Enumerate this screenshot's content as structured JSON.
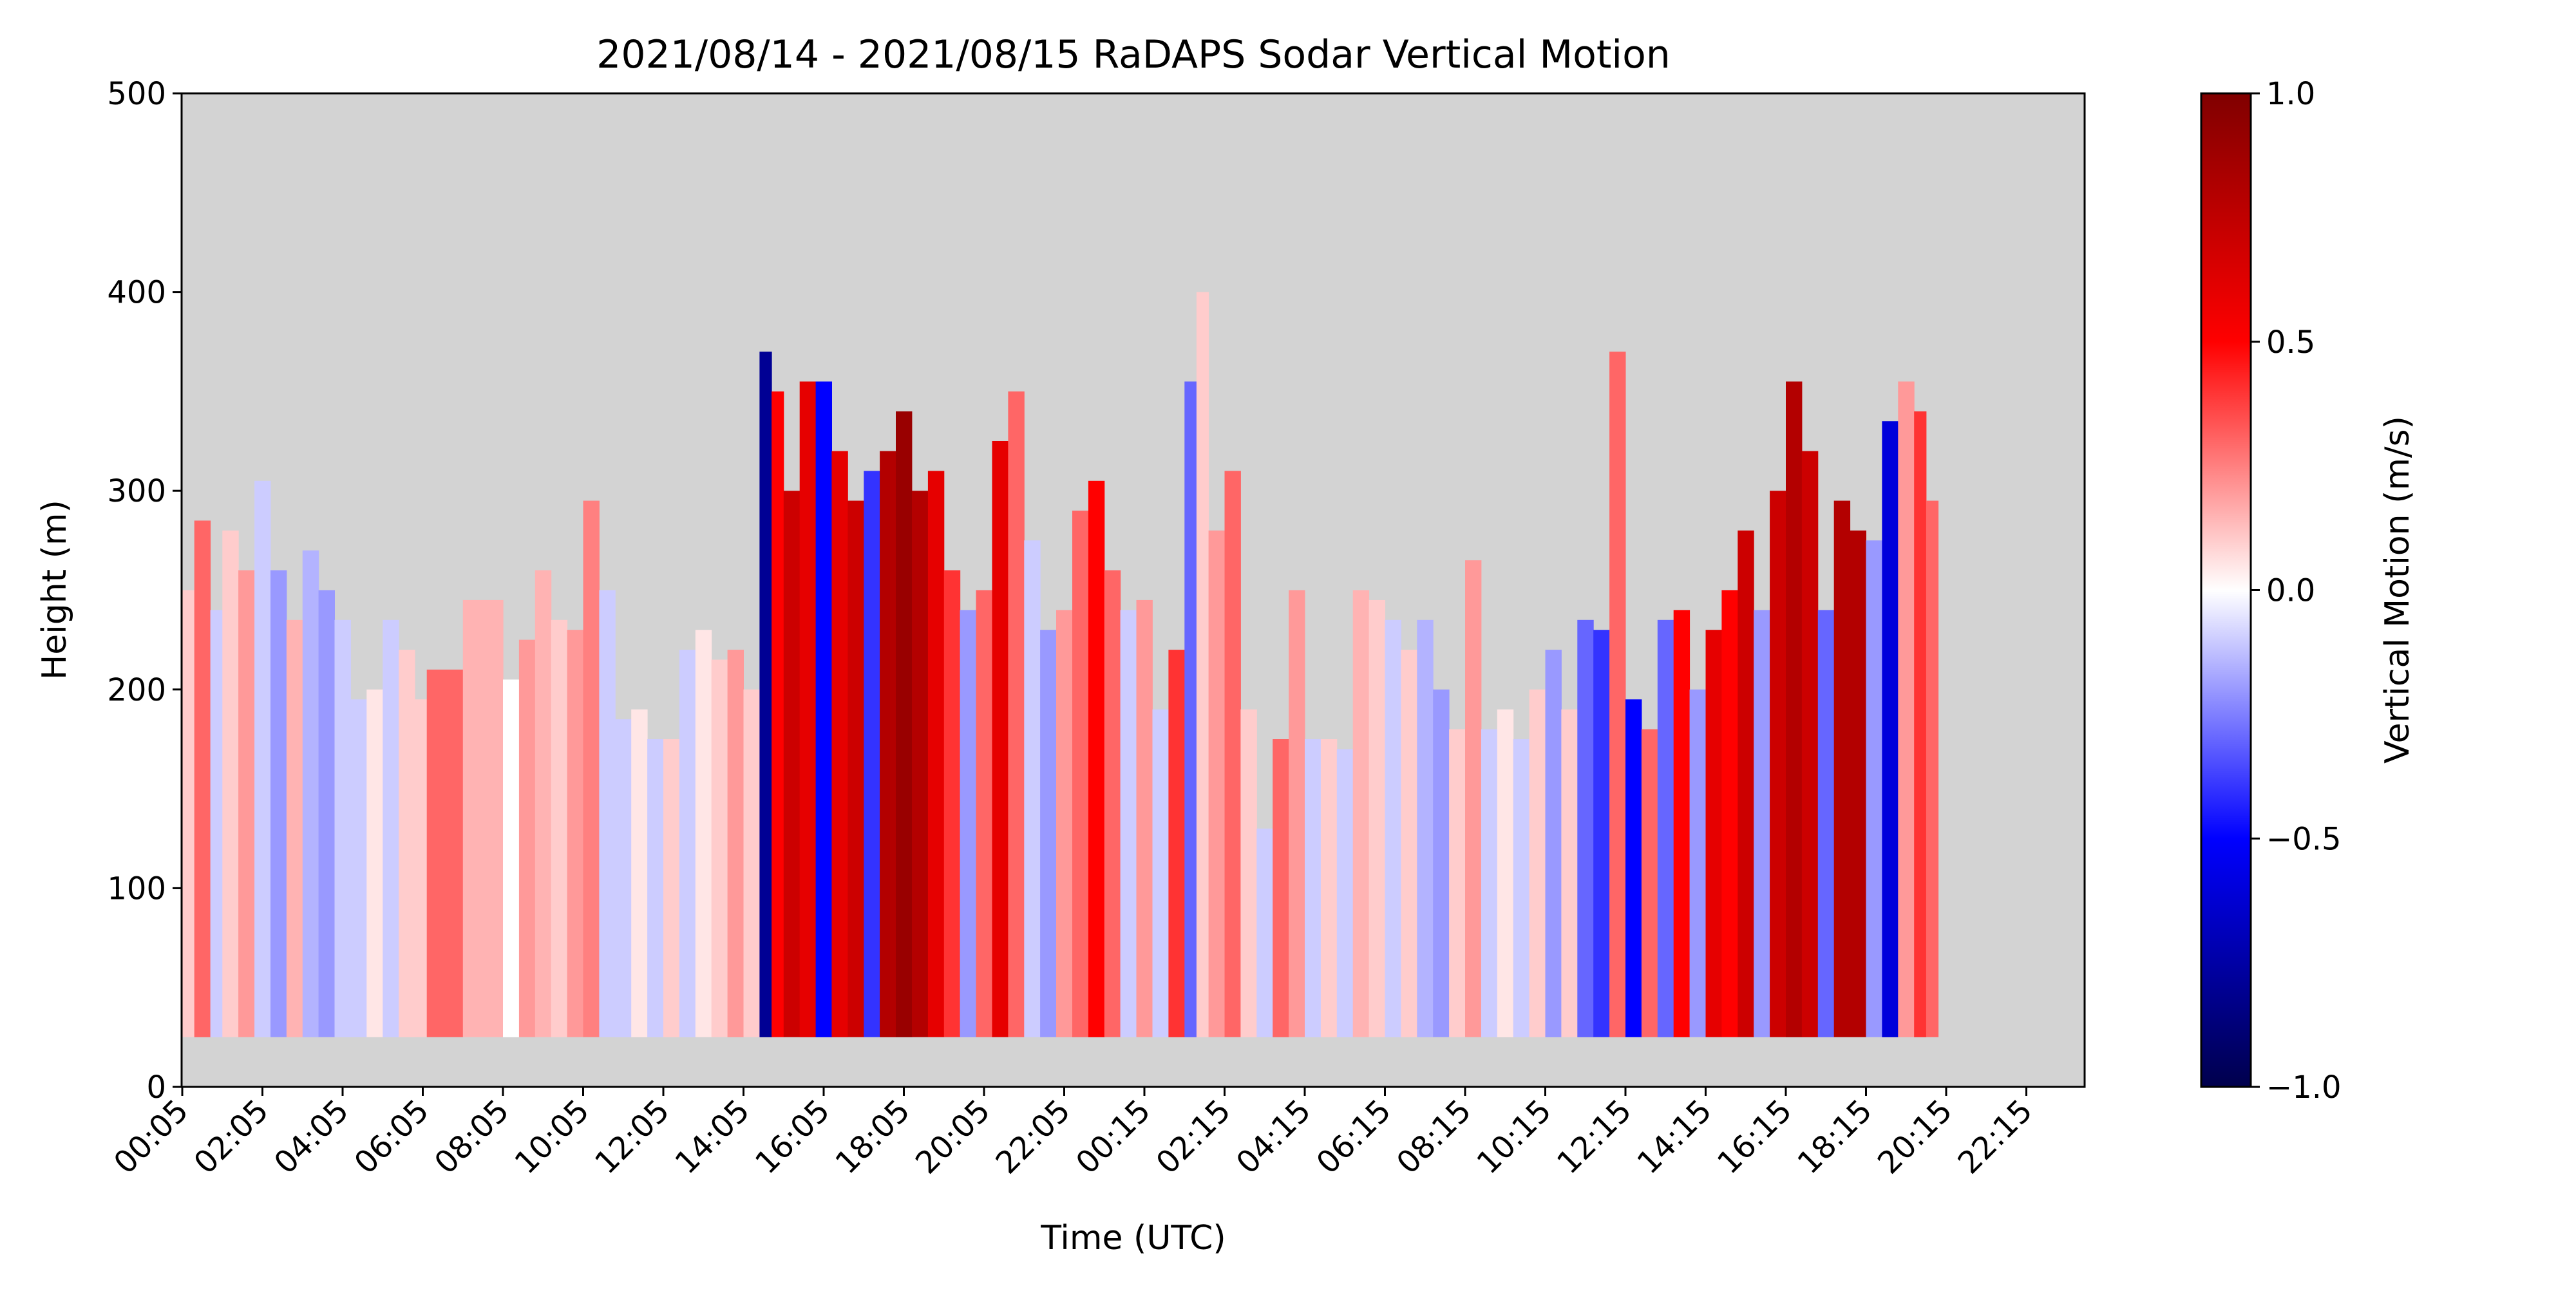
{
  "chart_data": {
    "type": "heatmap",
    "title": "2021/08/14 - 2021/08/15 RaDAPS Sodar Vertical Motion",
    "xlabel": "Time (UTC)",
    "ylabel": "Height (m)",
    "ylim": [
      0,
      500
    ],
    "y_ticks": [
      "0",
      "100",
      "200",
      "300",
      "400",
      "500"
    ],
    "x_tick_labels": [
      "00:05",
      "02:05",
      "04:05",
      "06:05",
      "08:05",
      "10:05",
      "12:05",
      "14:05",
      "16:05",
      "18:05",
      "20:05",
      "22:05",
      "00:15",
      "02:15",
      "04:15",
      "06:15",
      "08:15",
      "10:15",
      "12:15",
      "14:15",
      "16:15",
      "18:15",
      "20:15",
      "22:15"
    ],
    "colorbar": {
      "label": "Vertical Motion (m/s)",
      "range": [
        -1.0,
        1.0
      ],
      "ticks": [
        "−1.0",
        "−0.5",
        "0.0",
        "0.5",
        "1.0"
      ],
      "tick_values": [
        -1.0,
        -0.5,
        0.0,
        0.5,
        1.0
      ],
      "colormap": "seismic"
    },
    "background_color": "#d3d3d3",
    "data_floor_m": 25,
    "profiles": [
      {
        "hour": 0.0,
        "top": 250,
        "w": 0.1
      },
      {
        "hour": 0.3,
        "top": 285,
        "w": 0.3
      },
      {
        "hour": 0.7,
        "top": 240,
        "w": -0.1
      },
      {
        "hour": 1.0,
        "top": 280,
        "w": 0.1
      },
      {
        "hour": 1.4,
        "top": 260,
        "w": 0.2
      },
      {
        "hour": 1.8,
        "top": 305,
        "w": -0.1
      },
      {
        "hour": 2.2,
        "top": 260,
        "w": -0.2
      },
      {
        "hour": 2.6,
        "top": 235,
        "w": 0.15
      },
      {
        "hour": 3.0,
        "top": 270,
        "w": -0.15
      },
      {
        "hour": 3.4,
        "top": 250,
        "w": -0.2
      },
      {
        "hour": 3.8,
        "top": 235,
        "w": -0.1
      },
      {
        "hour": 4.2,
        "top": 195,
        "w": -0.1
      },
      {
        "hour": 4.6,
        "top": 200,
        "w": 0.05
      },
      {
        "hour": 5.0,
        "top": 235,
        "w": -0.1
      },
      {
        "hour": 5.4,
        "top": 220,
        "w": 0.1
      },
      {
        "hour": 5.8,
        "top": 195,
        "w": 0.1
      },
      {
        "hour": 6.1,
        "top": 210,
        "w": 0.3
      },
      {
        "hour": 7.0,
        "top": 245,
        "w": 0.15
      },
      {
        "hour": 8.0,
        "top": 205,
        "w": 0.0
      },
      {
        "hour": 8.4,
        "top": 225,
        "w": 0.2
      },
      {
        "hour": 8.8,
        "top": 260,
        "w": 0.15
      },
      {
        "hour": 9.2,
        "top": 235,
        "w": 0.1
      },
      {
        "hour": 9.6,
        "top": 230,
        "w": 0.2
      },
      {
        "hour": 10.0,
        "top": 295,
        "w": 0.25
      },
      {
        "hour": 10.4,
        "top": 250,
        "w": -0.1
      },
      {
        "hour": 10.8,
        "top": 185,
        "w": -0.1
      },
      {
        "hour": 11.2,
        "top": 190,
        "w": 0.05
      },
      {
        "hour": 11.6,
        "top": 175,
        "w": -0.1
      },
      {
        "hour": 12.0,
        "top": 175,
        "w": 0.1
      },
      {
        "hour": 12.4,
        "top": 220,
        "w": -0.1
      },
      {
        "hour": 12.8,
        "top": 230,
        "w": 0.05
      },
      {
        "hour": 13.2,
        "top": 215,
        "w": 0.1
      },
      {
        "hour": 13.6,
        "top": 220,
        "w": 0.2
      },
      {
        "hour": 14.0,
        "top": 200,
        "w": 0.1
      },
      {
        "hour": 14.4,
        "top": 370,
        "w": -0.8
      },
      {
        "hour": 14.7,
        "top": 350,
        "w": 0.5
      },
      {
        "hour": 15.0,
        "top": 300,
        "w": 0.7
      },
      {
        "hour": 15.4,
        "top": 355,
        "w": 0.6
      },
      {
        "hour": 15.8,
        "top": 355,
        "w": -0.5
      },
      {
        "hour": 16.2,
        "top": 320,
        "w": 0.6
      },
      {
        "hour": 16.6,
        "top": 295,
        "w": 0.7
      },
      {
        "hour": 17.0,
        "top": 310,
        "w": -0.4
      },
      {
        "hour": 17.4,
        "top": 320,
        "w": 0.8
      },
      {
        "hour": 17.8,
        "top": 340,
        "w": 0.9
      },
      {
        "hour": 18.2,
        "top": 300,
        "w": 0.8
      },
      {
        "hour": 18.6,
        "top": 310,
        "w": 0.6
      },
      {
        "hour": 19.0,
        "top": 260,
        "w": 0.4
      },
      {
        "hour": 19.4,
        "top": 240,
        "w": -0.2
      },
      {
        "hour": 19.8,
        "top": 250,
        "w": 0.3
      },
      {
        "hour": 20.2,
        "top": 325,
        "w": 0.6
      },
      {
        "hour": 20.6,
        "top": 350,
        "w": 0.3
      },
      {
        "hour": 21.0,
        "top": 275,
        "w": -0.1
      },
      {
        "hour": 21.4,
        "top": 230,
        "w": -0.2
      },
      {
        "hour": 21.8,
        "top": 240,
        "w": 0.2
      },
      {
        "hour": 22.2,
        "top": 290,
        "w": 0.3
      },
      {
        "hour": 22.6,
        "top": 305,
        "w": 0.5
      },
      {
        "hour": 23.0,
        "top": 260,
        "w": 0.3
      },
      {
        "hour": 23.4,
        "top": 240,
        "w": -0.1
      },
      {
        "hour": 23.8,
        "top": 245,
        "w": 0.2
      },
      {
        "hour": 24.2,
        "top": 190,
        "w": -0.1
      },
      {
        "hour": 24.6,
        "top": 220,
        "w": 0.4
      },
      {
        "hour": 25.0,
        "top": 355,
        "w": -0.3
      },
      {
        "hour": 25.3,
        "top": 400,
        "w": 0.1
      },
      {
        "hour": 25.6,
        "top": 280,
        "w": 0.2
      },
      {
        "hour": 26.0,
        "top": 310,
        "w": 0.3
      },
      {
        "hour": 26.4,
        "top": 190,
        "w": 0.1
      },
      {
        "hour": 26.8,
        "top": 130,
        "w": -0.1
      },
      {
        "hour": 27.2,
        "top": 175,
        "w": 0.3
      },
      {
        "hour": 27.6,
        "top": 250,
        "w": 0.2
      },
      {
        "hour": 28.0,
        "top": 175,
        "w": -0.1
      },
      {
        "hour": 28.4,
        "top": 175,
        "w": 0.1
      },
      {
        "hour": 28.8,
        "top": 170,
        "w": -0.1
      },
      {
        "hour": 29.2,
        "top": 250,
        "w": 0.15
      },
      {
        "hour": 29.6,
        "top": 245,
        "w": 0.1
      },
      {
        "hour": 30.0,
        "top": 235,
        "w": -0.1
      },
      {
        "hour": 30.4,
        "top": 220,
        "w": 0.1
      },
      {
        "hour": 30.8,
        "top": 235,
        "w": -0.15
      },
      {
        "hour": 31.2,
        "top": 200,
        "w": -0.2
      },
      {
        "hour": 31.6,
        "top": 180,
        "w": 0.1
      },
      {
        "hour": 32.0,
        "top": 265,
        "w": 0.2
      },
      {
        "hour": 32.4,
        "top": 180,
        "w": -0.1
      },
      {
        "hour": 32.8,
        "top": 190,
        "w": 0.05
      },
      {
        "hour": 33.2,
        "top": 175,
        "w": -0.1
      },
      {
        "hour": 33.6,
        "top": 200,
        "w": 0.1
      },
      {
        "hour": 34.0,
        "top": 220,
        "w": -0.2
      },
      {
        "hour": 34.4,
        "top": 190,
        "w": 0.1
      },
      {
        "hour": 34.8,
        "top": 235,
        "w": -0.3
      },
      {
        "hour": 35.2,
        "top": 230,
        "w": -0.4
      },
      {
        "hour": 35.6,
        "top": 370,
        "w": 0.3
      },
      {
        "hour": 36.0,
        "top": 195,
        "w": -0.5
      },
      {
        "hour": 36.4,
        "top": 180,
        "w": 0.3
      },
      {
        "hour": 36.8,
        "top": 235,
        "w": -0.3
      },
      {
        "hour": 37.2,
        "top": 240,
        "w": 0.5
      },
      {
        "hour": 37.6,
        "top": 200,
        "w": -0.2
      },
      {
        "hour": 38.0,
        "top": 230,
        "w": 0.6
      },
      {
        "hour": 38.4,
        "top": 250,
        "w": 0.5
      },
      {
        "hour": 38.8,
        "top": 280,
        "w": 0.7
      },
      {
        "hour": 39.2,
        "top": 240,
        "w": -0.2
      },
      {
        "hour": 39.6,
        "top": 300,
        "w": 0.7
      },
      {
        "hour": 40.0,
        "top": 355,
        "w": 0.8
      },
      {
        "hour": 40.4,
        "top": 320,
        "w": 0.7
      },
      {
        "hour": 40.8,
        "top": 240,
        "w": -0.3
      },
      {
        "hour": 41.2,
        "top": 295,
        "w": 0.8
      },
      {
        "hour": 41.6,
        "top": 280,
        "w": 0.8
      },
      {
        "hour": 42.0,
        "top": 275,
        "w": -0.2
      },
      {
        "hour": 42.4,
        "top": 335,
        "w": -0.6
      },
      {
        "hour": 42.8,
        "top": 355,
        "w": 0.2
      },
      {
        "hour": 43.2,
        "top": 340,
        "w": 0.4
      },
      {
        "hour": 43.5,
        "top": 295,
        "w": 0.3
      }
    ]
  }
}
